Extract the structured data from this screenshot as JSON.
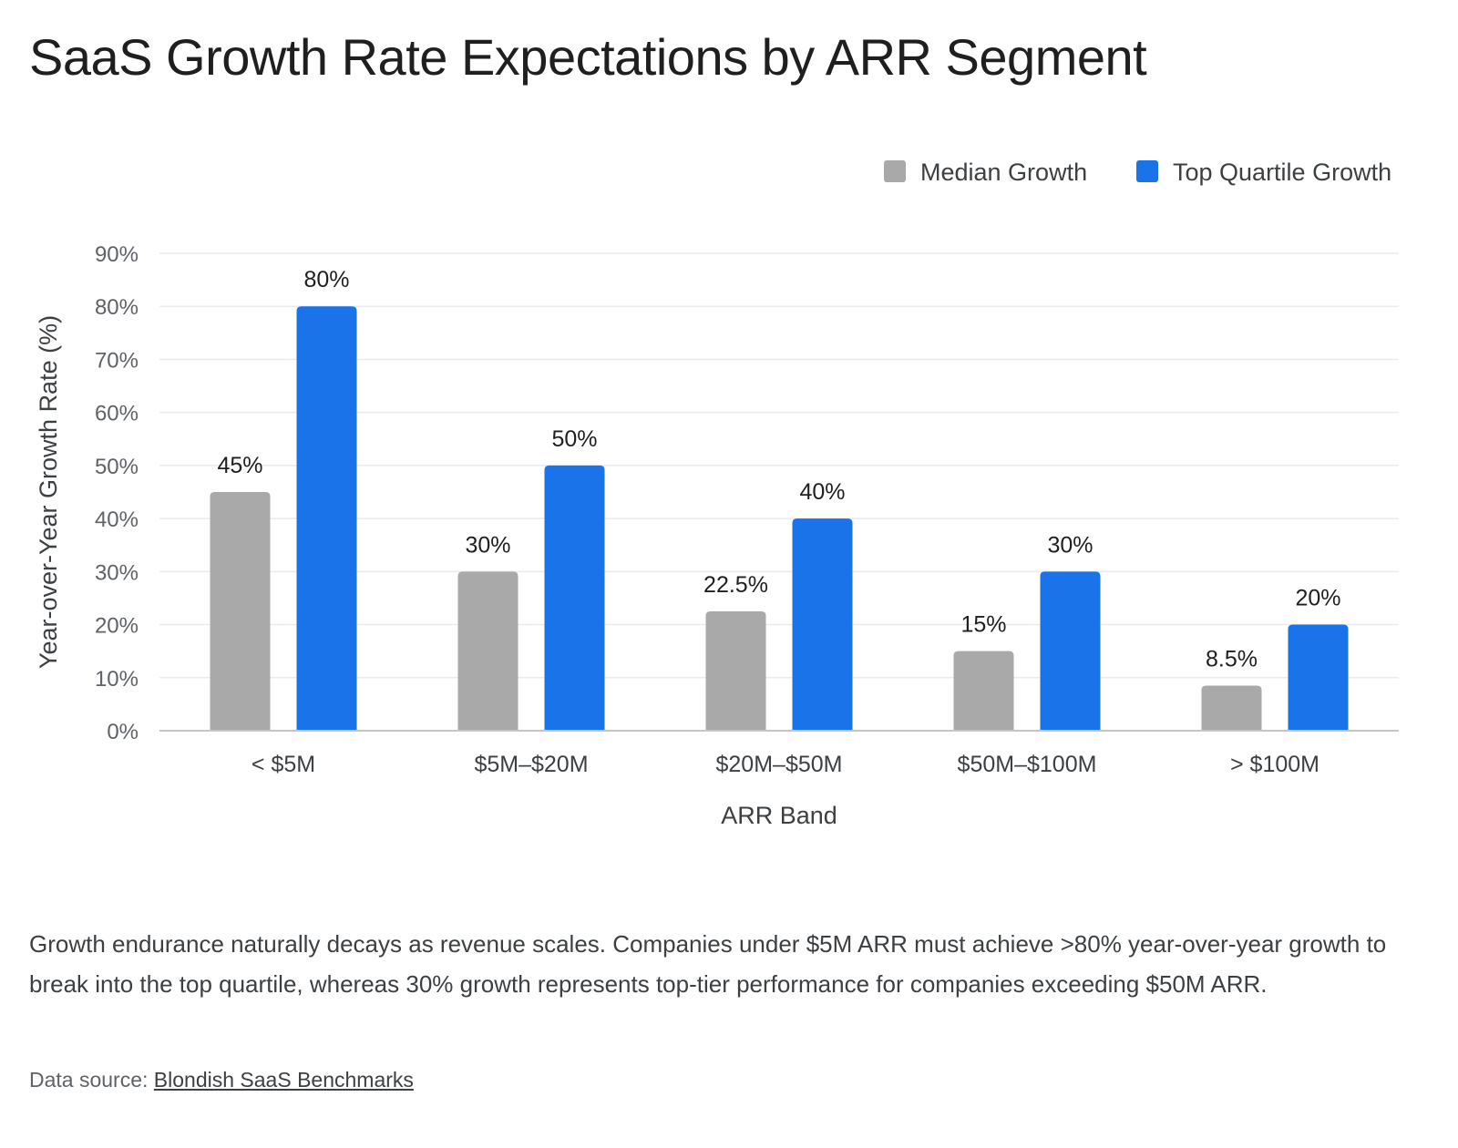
{
  "title": "SaaS Growth Rate Expectations by ARR Segment",
  "caption": "Growth endurance naturally decays as revenue scales. Companies under $5M ARR must achieve >80% year-over-year growth to break into the top quartile, whereas 30% growth represents top-tier performance for companies exceeding $50M ARR.",
  "source": {
    "label": "Data source: ",
    "link_text": "Blondish SaaS Benchmarks"
  },
  "colors": {
    "median": "#a9a9a9",
    "top_quartile": "#1a73e8",
    "grid": "#e8eaed",
    "axis": "#c4c7c5"
  },
  "chart_data": {
    "type": "bar",
    "title": "SaaS Growth Rate Expectations by ARR Segment",
    "xlabel": "ARR Band",
    "ylabel": "Year-over-Year Growth Rate (%)",
    "categories": [
      "< $5M",
      "$5M–$20M",
      "$20M–$50M",
      "$50M–$100M",
      "> $100M"
    ],
    "series": [
      {
        "name": "Median Growth",
        "values": [
          45,
          30,
          22.5,
          15,
          8.5
        ],
        "labels": [
          "45%",
          "30%",
          "22.5%",
          "15%",
          "8.5%"
        ]
      },
      {
        "name": "Top Quartile Growth",
        "values": [
          80,
          50,
          40,
          30,
          20
        ],
        "labels": [
          "80%",
          "50%",
          "40%",
          "30%",
          "20%"
        ]
      }
    ],
    "ylim": [
      0,
      90
    ],
    "yticks": [
      0,
      10,
      20,
      30,
      40,
      50,
      60,
      70,
      80,
      90
    ],
    "ytick_labels": [
      "0%",
      "10%",
      "20%",
      "30%",
      "40%",
      "50%",
      "60%",
      "70%",
      "80%",
      "90%"
    ],
    "grid": true,
    "legend_position": "top-right"
  }
}
